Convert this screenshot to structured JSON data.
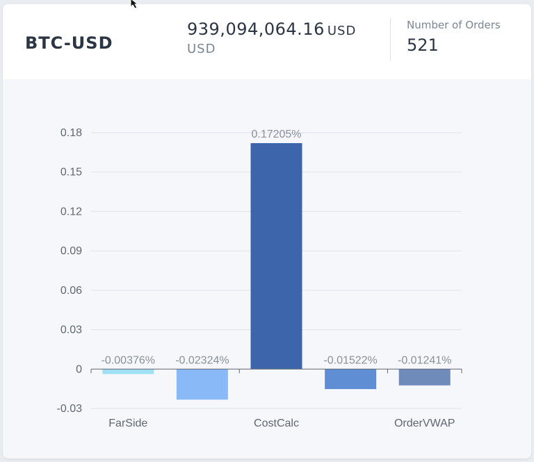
{
  "header": {
    "symbol": "BTC-USD",
    "volume_amount": "939,094,064.16",
    "volume_unit": "USD",
    "volume_unit_secondary": "USD",
    "orders_label": "Number of Orders",
    "orders_value": "521"
  },
  "chart_data": {
    "type": "bar",
    "title": "",
    "xlabel": "",
    "ylabel": "",
    "categories": [
      "FarSide",
      "",
      "CostCalc",
      "",
      "OrderVWAP"
    ],
    "values": [
      -0.00376,
      -0.02324,
      0.17205,
      -0.01522,
      -0.01241
    ],
    "value_labels": [
      "-0.00376%",
      "-0.02324%",
      "0.17205%",
      "-0.01522%",
      "-0.01241%"
    ],
    "colors": [
      "#9fe0f5",
      "#8ab9f8",
      "#3d65ab",
      "#5f8ed5",
      "#6f8bb9"
    ],
    "ylim": [
      -0.03,
      0.18
    ],
    "yticks": [
      -0.03,
      0,
      0.03,
      0.06,
      0.09,
      0.12,
      0.15,
      0.18
    ],
    "ytick_labels": [
      "-0.03",
      "0",
      "0.03",
      "0.06",
      "0.09",
      "0.12",
      "0.15",
      "0.18"
    ],
    "grid": true
  }
}
